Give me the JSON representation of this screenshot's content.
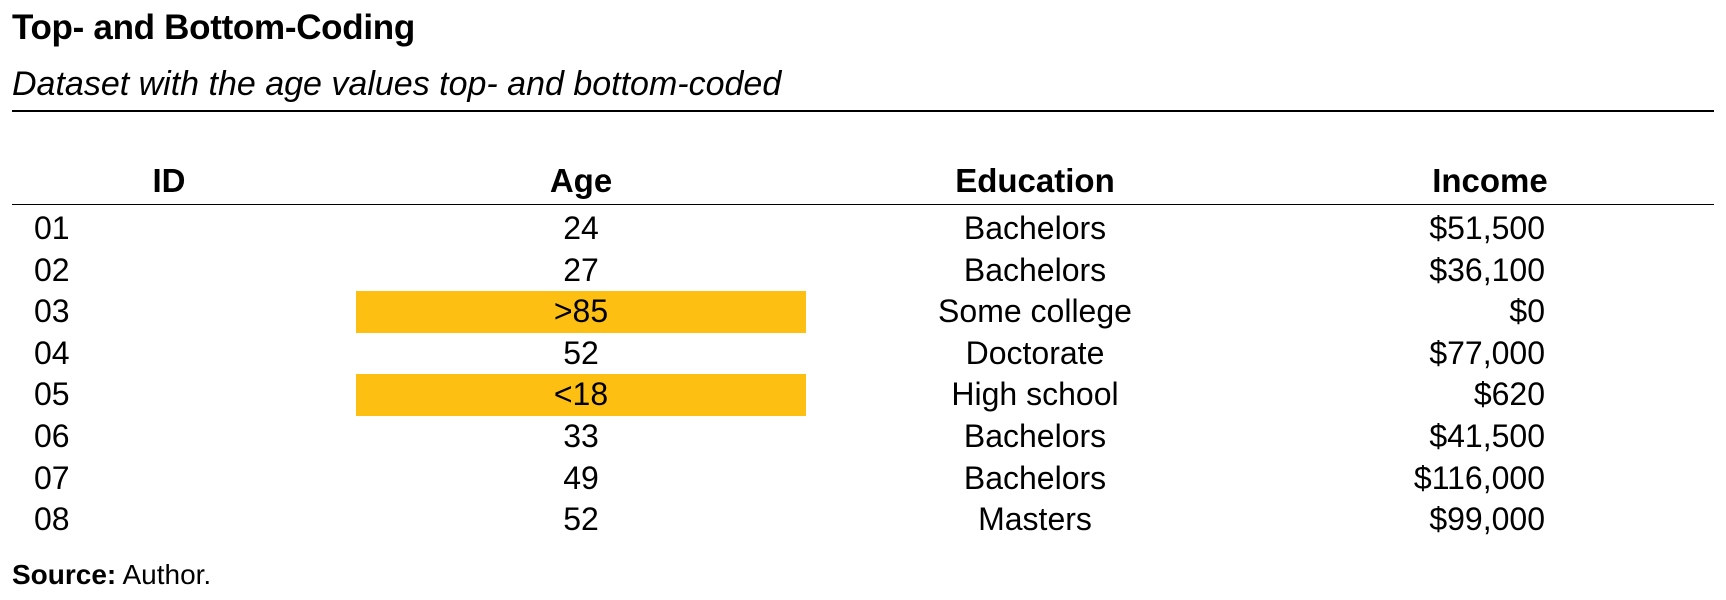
{
  "title": "Top- and Bottom-Coding",
  "subtitle": "Dataset with the age values top- and bottom-coded",
  "table": {
    "headers": [
      "ID",
      "Age",
      "Education",
      "Income"
    ],
    "rows": [
      {
        "id": "01",
        "age": "24",
        "education": "Bachelors",
        "income": "$51,500",
        "age_highlighted": false
      },
      {
        "id": "02",
        "age": "27",
        "education": "Bachelors",
        "income": "$36,100",
        "age_highlighted": false
      },
      {
        "id": "03",
        "age": ">85",
        "education": "Some college",
        "income": "$0",
        "age_highlighted": true
      },
      {
        "id": "04",
        "age": "52",
        "education": "Doctorate",
        "income": "$77,000",
        "age_highlighted": false
      },
      {
        "id": "05",
        "age": "<18",
        "education": "High school",
        "income": "$620",
        "age_highlighted": true
      },
      {
        "id": "06",
        "age": "33",
        "education": "Bachelors",
        "income": "$41,500",
        "age_highlighted": false
      },
      {
        "id": "07",
        "age": "49",
        "education": "Bachelors",
        "income": "$116,000",
        "age_highlighted": false
      },
      {
        "id": "08",
        "age": "52",
        "education": "Masters",
        "income": "$99,000",
        "age_highlighted": false
      }
    ]
  },
  "source": {
    "label": "Source:",
    "text": "Author."
  },
  "colors": {
    "highlight": "#fdbf11",
    "text": "#000000",
    "rule": "#000000"
  }
}
